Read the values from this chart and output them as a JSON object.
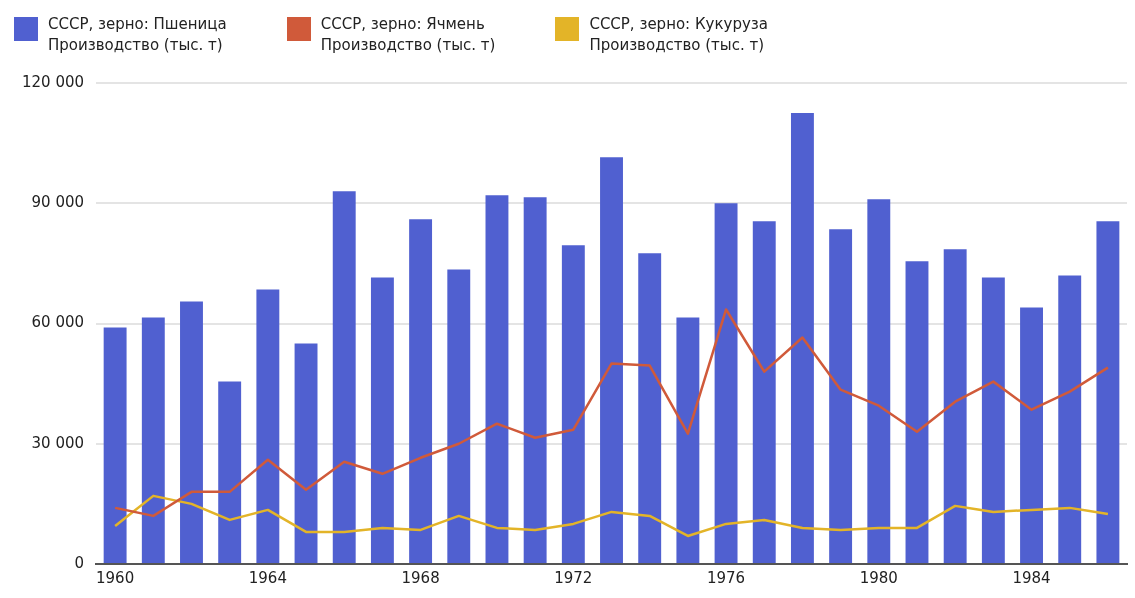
{
  "chart_data": {
    "type": "bar",
    "categories": [
      "1960",
      null,
      null,
      null,
      "1964",
      null,
      null,
      null,
      "1968",
      null,
      null,
      null,
      "1972",
      null,
      null,
      null,
      "1976",
      null,
      null,
      null,
      "1980",
      null,
      null,
      null,
      "1984",
      null,
      null
    ],
    "series": [
      {
        "name": "СССР, зерно: Пшеница\nПроизводство (тыс. т)",
        "color": "#5060d0",
        "values": [
          59000,
          61500,
          65500,
          45500,
          68500,
          55000,
          93000,
          71500,
          86000,
          73500,
          92000,
          91500,
          79500,
          101500,
          77500,
          61500,
          90000,
          85500,
          112500,
          83500,
          91000,
          75500,
          78500,
          71500,
          64000,
          72000,
          85500
        ]
      },
      {
        "name": "СССР, зерно: Ячмень\nПроизводство (тыс. т)",
        "type": "line",
        "color": "#d05a3a",
        "values": [
          14000,
          12000,
          18000,
          18000,
          26000,
          18500,
          25500,
          22500,
          26500,
          30000,
          35000,
          31500,
          33500,
          50000,
          49500,
          32500,
          63500,
          48000,
          56500,
          43500,
          39500,
          33000,
          40500,
          45500,
          38500,
          43000,
          49000
        ]
      },
      {
        "name": "СССР, зерно: Кукуруза\nПроизводство (тыс. т)",
        "type": "line",
        "color": "#e3b428",
        "values": [
          9500,
          17000,
          15000,
          11000,
          13500,
          8000,
          8000,
          9000,
          8500,
          12000,
          9000,
          8500,
          10000,
          13000,
          12000,
          7000,
          10000,
          11000,
          9000,
          8500,
          9000,
          9000,
          14500,
          13000,
          13500,
          14000,
          12500
        ]
      }
    ],
    "ylim": [
      0,
      120000
    ],
    "yticks": [
      {
        "value": 0,
        "label": "0"
      },
      {
        "value": 30000,
        "label": "30 000"
      },
      {
        "value": 60000,
        "label": "60 000"
      },
      {
        "value": 90000,
        "label": "90 000"
      },
      {
        "value": 120000,
        "label": "120 000"
      }
    ],
    "grid": "y",
    "legend": "top left",
    "marker": "none"
  }
}
